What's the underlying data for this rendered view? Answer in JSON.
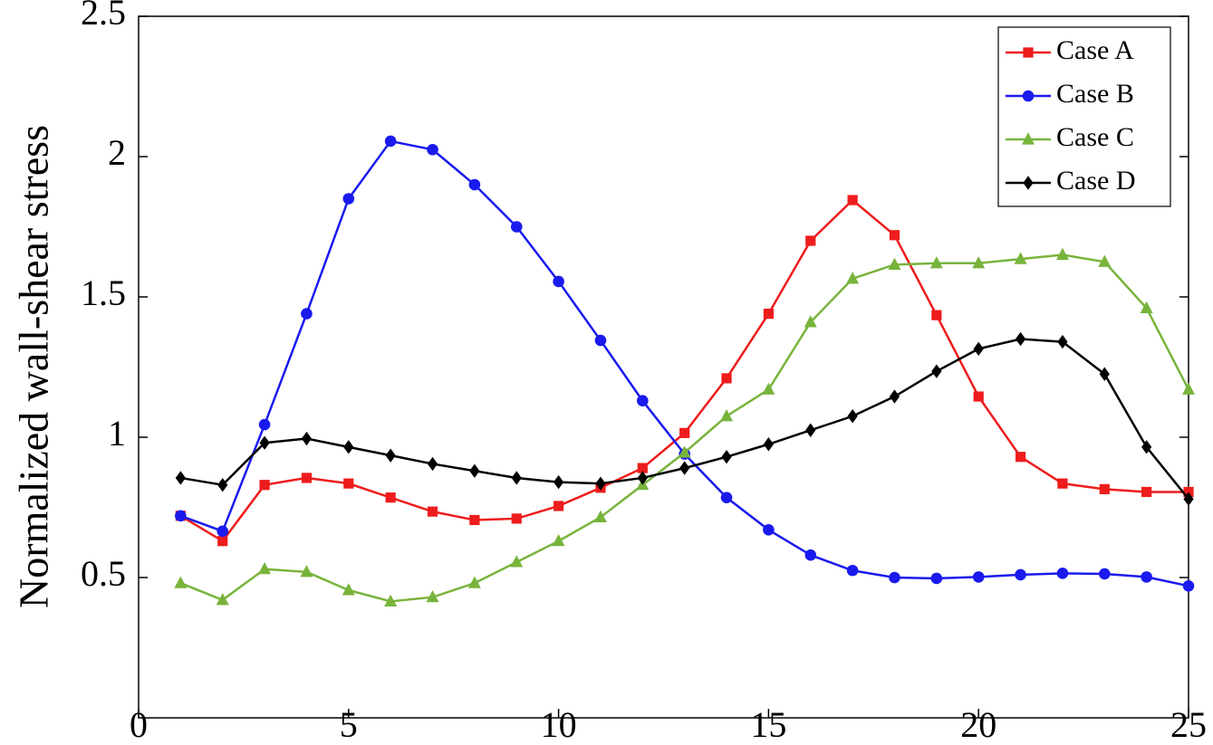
{
  "chart_data": {
    "type": "line",
    "ylabel": "Normalized wall-shear stress",
    "x": [
      1,
      2,
      3,
      4,
      5,
      6,
      7,
      8,
      9,
      10,
      11,
      12,
      13,
      14,
      15,
      16,
      17,
      18,
      19,
      20,
      21,
      22,
      23,
      24,
      25
    ],
    "xlim": [
      0,
      25
    ],
    "xticks": [
      0,
      5,
      10,
      15,
      20,
      25
    ],
    "ylim": [
      0,
      2.5
    ],
    "yticks": [
      0.5,
      1,
      1.5,
      2,
      2.5
    ],
    "legend": "upper right",
    "series": [
      {
        "name": "Case A",
        "color": "#ee1c1c",
        "marker": "square",
        "values": [
          0.72,
          0.63,
          0.83,
          0.855,
          0.835,
          0.785,
          0.735,
          0.705,
          0.71,
          0.755,
          0.82,
          0.89,
          1.015,
          1.21,
          1.44,
          1.7,
          1.845,
          1.72,
          1.435,
          1.145,
          0.93,
          0.835,
          0.815,
          0.805,
          0.805
        ]
      },
      {
        "name": "Case B",
        "color": "#1a1aee",
        "marker": "circle",
        "values": [
          0.72,
          0.665,
          1.045,
          1.44,
          1.85,
          2.055,
          2.025,
          1.9,
          1.75,
          1.555,
          1.345,
          1.13,
          0.94,
          0.785,
          0.67,
          0.58,
          0.525,
          0.5,
          0.497,
          0.502,
          0.51,
          0.515,
          0.513,
          0.502,
          0.47
        ]
      },
      {
        "name": "Case C",
        "color": "#78b43c",
        "marker": "triangle",
        "values": [
          0.48,
          0.42,
          0.53,
          0.52,
          0.455,
          0.415,
          0.43,
          0.48,
          0.555,
          0.63,
          0.715,
          0.83,
          0.945,
          1.075,
          1.17,
          1.41,
          1.565,
          1.615,
          1.62,
          1.62,
          1.635,
          1.65,
          1.625,
          1.46,
          1.17
        ]
      },
      {
        "name": "Case D",
        "color": "#000000",
        "marker": "diamond",
        "values": [
          0.855,
          0.83,
          0.98,
          0.995,
          0.965,
          0.935,
          0.905,
          0.88,
          0.855,
          0.84,
          0.835,
          0.855,
          0.89,
          0.93,
          0.975,
          1.025,
          1.075,
          1.145,
          1.235,
          1.315,
          1.35,
          1.34,
          1.225,
          0.965,
          0.78
        ]
      }
    ]
  }
}
